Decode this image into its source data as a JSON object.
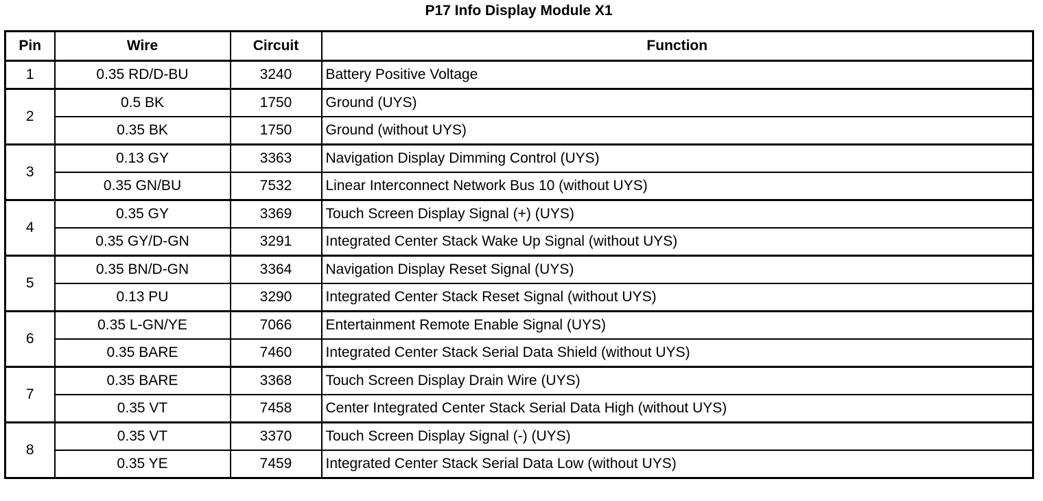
{
  "title": "P17 Info Display Module X1",
  "headers": {
    "pin": "Pin",
    "wire": "Wire",
    "circuit": "Circuit",
    "function": "Function"
  },
  "pins": [
    {
      "pin": "1",
      "rows": [
        {
          "wire": "0.35 RD/D-BU",
          "circuit": "3240",
          "function": "Battery Positive Voltage"
        }
      ]
    },
    {
      "pin": "2",
      "rows": [
        {
          "wire": "0.5 BK",
          "circuit": "1750",
          "function": "Ground (UYS)"
        },
        {
          "wire": "0.35 BK",
          "circuit": "1750",
          "function": "Ground (without UYS)"
        }
      ]
    },
    {
      "pin": "3",
      "rows": [
        {
          "wire": "0.13 GY",
          "circuit": "3363",
          "function": "Navigation Display Dimming Control (UYS)"
        },
        {
          "wire": "0.35 GN/BU",
          "circuit": "7532",
          "function": "Linear Interconnect Network Bus 10 (without UYS)"
        }
      ]
    },
    {
      "pin": "4",
      "rows": [
        {
          "wire": "0.35 GY",
          "circuit": "3369",
          "function": "Touch Screen Display Signal (+) (UYS)"
        },
        {
          "wire": "0.35 GY/D-GN",
          "circuit": "3291",
          "function": "Integrated Center Stack Wake Up Signal (without UYS)"
        }
      ]
    },
    {
      "pin": "5",
      "rows": [
        {
          "wire": "0.35 BN/D-GN",
          "circuit": "3364",
          "function": "Navigation Display Reset Signal (UYS)"
        },
        {
          "wire": "0.13 PU",
          "circuit": "3290",
          "function": "Integrated Center Stack Reset Signal (without UYS)"
        }
      ]
    },
    {
      "pin": "6",
      "rows": [
        {
          "wire": "0.35 L-GN/YE",
          "circuit": "7066",
          "function": "Entertainment Remote Enable Signal (UYS)"
        },
        {
          "wire": "0.35 BARE",
          "circuit": "7460",
          "function": "Integrated Center Stack Serial Data Shield (without UYS)"
        }
      ]
    },
    {
      "pin": "7",
      "rows": [
        {
          "wire": "0.35 BARE",
          "circuit": "3368",
          "function": "Touch Screen Display Drain Wire (UYS)"
        },
        {
          "wire": "0.35 VT",
          "circuit": "7458",
          "function": "Center Integrated Center Stack Serial Data High (without UYS)"
        }
      ]
    },
    {
      "pin": "8",
      "rows": [
        {
          "wire": "0.35 VT",
          "circuit": "3370",
          "function": "Touch Screen Display Signal (-) (UYS)"
        },
        {
          "wire": "0.35 YE",
          "circuit": "7459",
          "function": "Integrated Center Stack Serial Data Low (without UYS)"
        }
      ]
    }
  ]
}
